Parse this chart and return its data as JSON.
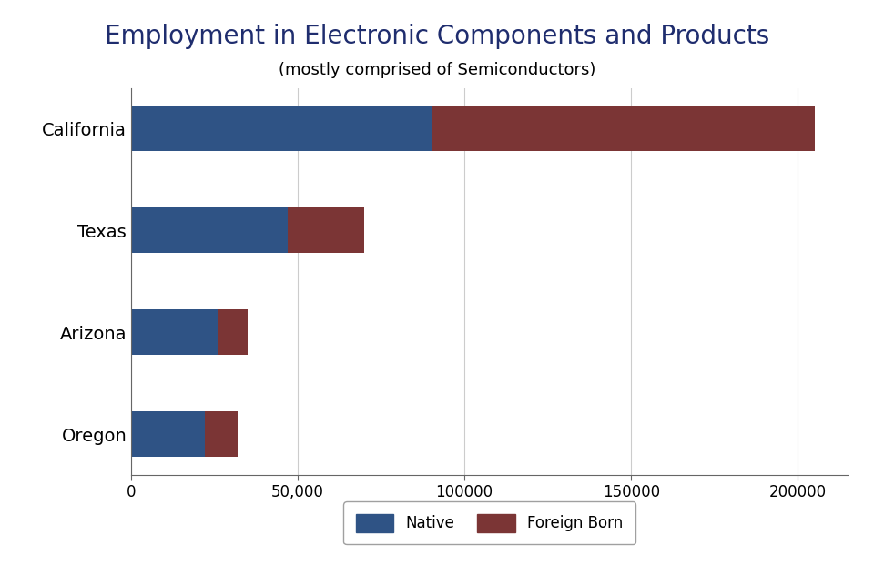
{
  "title": "Employment in Electronic Components and Products",
  "subtitle": "(mostly comprised of Semiconductors)",
  "categories": [
    "California",
    "Texas",
    "Arizona",
    "Oregon"
  ],
  "native": [
    90000,
    47000,
    26000,
    22000
  ],
  "foreign_born": [
    115000,
    23000,
    9000,
    10000
  ],
  "native_color": "#2F5385",
  "foreign_born_color": "#7B3535",
  "background_color": "#FFFFFF",
  "title_color": "#1F2D6E",
  "label_color": "#000000",
  "xlim": [
    0,
    215000
  ],
  "xticks": [
    0,
    50000,
    100000,
    150000,
    200000
  ],
  "xticklabels": [
    "0",
    "50,000",
    "100000",
    "150000",
    "200000"
  ],
  "title_fontsize": 20,
  "subtitle_fontsize": 13,
  "tick_fontsize": 12,
  "label_fontsize": 14,
  "legend_fontsize": 12,
  "bar_height": 0.45
}
